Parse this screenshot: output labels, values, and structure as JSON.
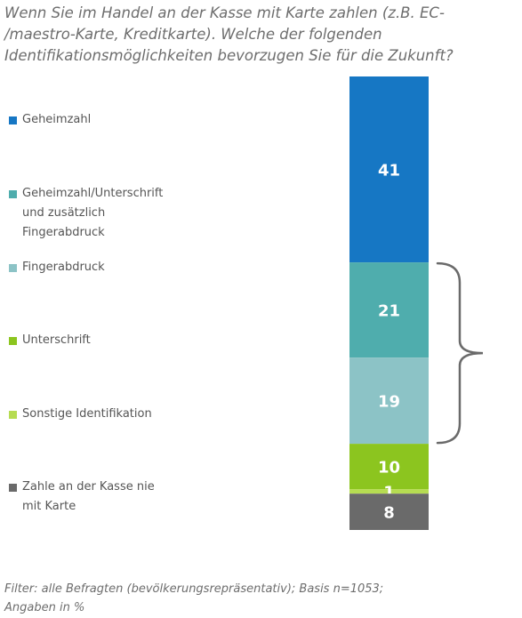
{
  "title_lines": [
    "Wenn Sie im Handel an der Kasse mit Karte zahlen (z.B. EC-",
    "/maestro-Karte, Kreditkarte). Welche der folgenden",
    "Identifikationsmöglichkeiten bevorzugen Sie für die Zukunft?"
  ],
  "footnote": "Filter: alle Befragten (bevölkerungsrepräsentativ); Basis n=1053;\nAngaben in %",
  "chart_data": {
    "type": "bar",
    "stacked": true,
    "unit": "%",
    "categories": [
      ""
    ],
    "series": [
      {
        "name": "Geheimzahl",
        "legend_label": "Geheimzahl",
        "value": 41,
        "color": "#1677c4"
      },
      {
        "name": "Geheimzahl/Unterschrift und zusätzlich Fingerabdruck",
        "legend_label": "Geheimzahl/Unterschrift\nund zusätzlich\nFingerabdruck",
        "value": 21,
        "color": "#4fadad"
      },
      {
        "name": "Fingerabdruck",
        "legend_label": "Fingerabdruck",
        "value": 19,
        "color": "#8cc3c6"
      },
      {
        "name": "Unterschrift",
        "legend_label": "Unterschrift",
        "value": 10,
        "color": "#8cc51f"
      },
      {
        "name": "Sonstige Identifikation",
        "legend_label": "Sonstige Identifikation",
        "value": 1,
        "color": "#b6dc52"
      },
      {
        "name": "Zahle an der Kasse nie mit Karte",
        "legend_label": "Zahle an der Kasse nie\nmit Karte",
        "value": 8,
        "color": "#6a6a6a"
      }
    ],
    "legend": "left",
    "brace_groups": [
      [
        "Geheimzahl/Unterschrift und zusätzlich Fingerabdruck",
        "Fingerabdruck"
      ]
    ]
  }
}
